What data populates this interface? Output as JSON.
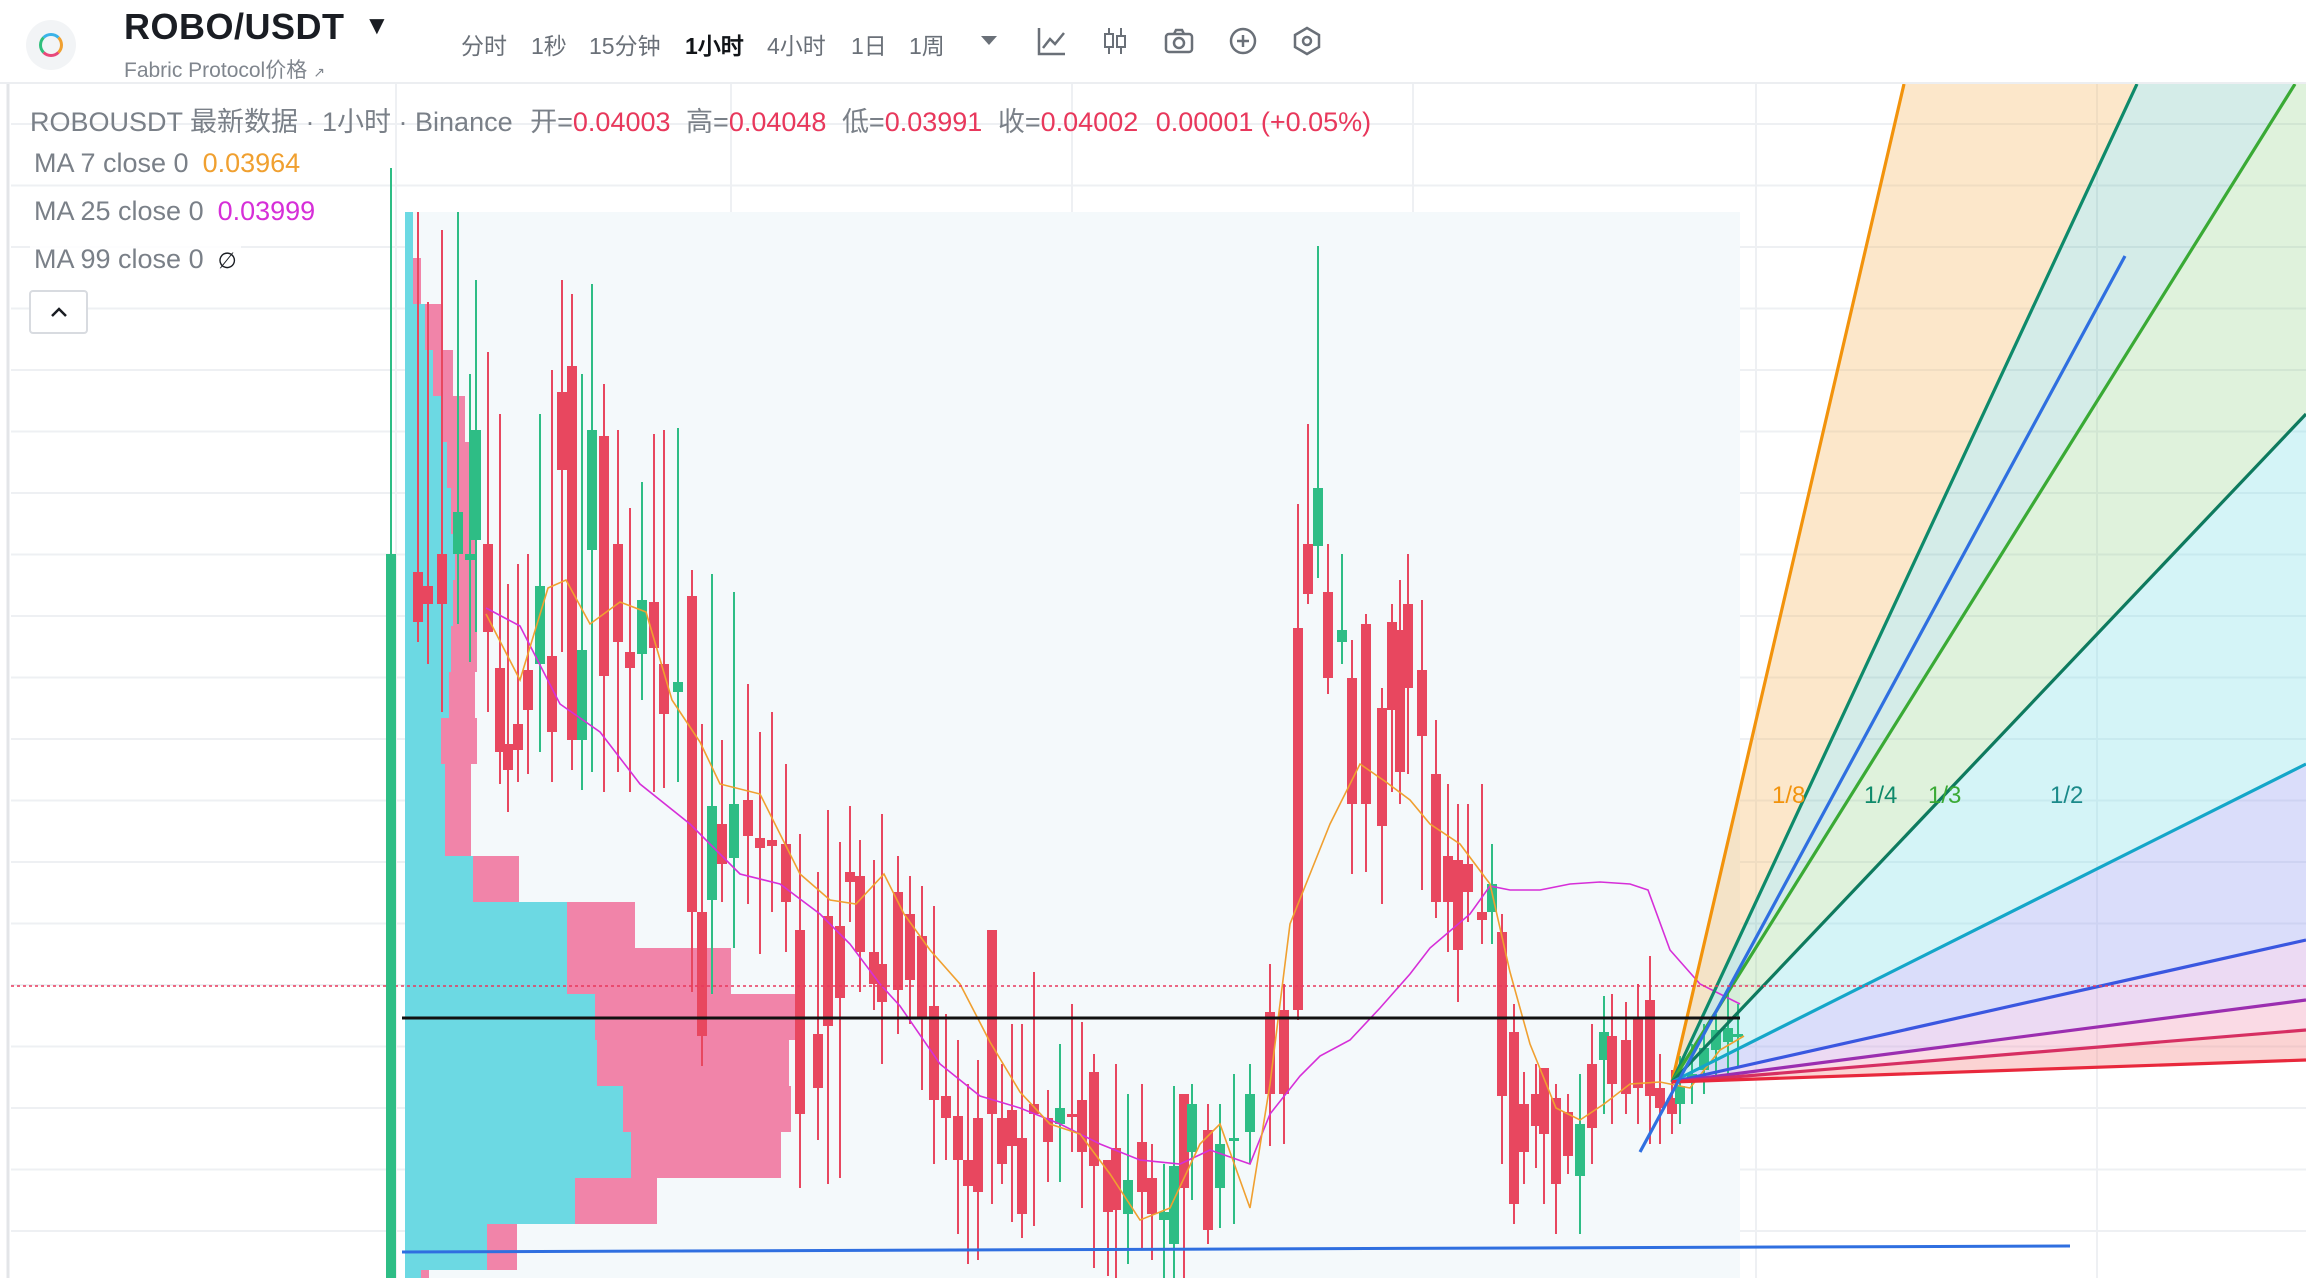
{
  "header": {
    "symbol": "ROBO/USDT",
    "subtitle": "Fabric Protocol价格",
    "intervals": [
      "分时",
      "1秒",
      "15分钟",
      "1小时",
      "4小时",
      "1日",
      "1周"
    ],
    "active_interval": "1小时",
    "tool_icons": [
      "chart-style-icon",
      "candle-type-icon",
      "camera-icon",
      "add-indicator-icon",
      "settings-hex-icon"
    ]
  },
  "legend": {
    "title": "ROBOUSDT 最新数据 · 1小时 · Binance",
    "open_label": "开=",
    "open": "0.04003",
    "high_label": "高=",
    "high": "0.04048",
    "low_label": "低=",
    "low": "0.03991",
    "close_label": "收=",
    "close": "0.04002",
    "change": "0.00001 (+0.05%)",
    "ma": [
      {
        "label": "MA 7 close 0",
        "value": "0.03964",
        "color": "#f0a030"
      },
      {
        "label": "MA 25 close 0",
        "value": "0.03999",
        "color": "#d62fd8"
      },
      {
        "label": "MA 99 close 0",
        "value": "∅",
        "color": "#1a1d23"
      }
    ]
  },
  "fan_labels": [
    {
      "text": "1/8",
      "color": "#f2930c"
    },
    {
      "text": "1/4",
      "color": "#0e8a6a"
    },
    {
      "text": "1/3",
      "color": "#3aaa35"
    },
    {
      "text": "1/2",
      "color": "#1b8a8a"
    }
  ],
  "colors": {
    "up": "#2ebd85",
    "down": "#e8475f",
    "ma7": "#f0a030",
    "ma25": "#d62fd8",
    "grid": "#eef0f3",
    "volume_profile_up": "#5dd5e0",
    "volume_profile_down": "#f0709a"
  }
}
